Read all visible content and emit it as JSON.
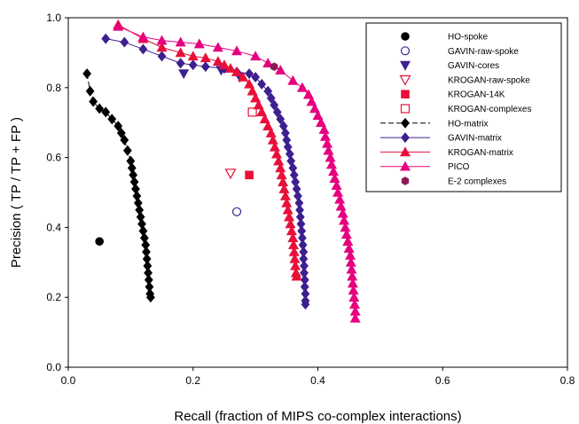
{
  "chart_data": {
    "type": "scatter",
    "title": "",
    "xlabel": "Recall (fraction of MIPS co-complex interactions)",
    "ylabel": "Precision ( TP / TP + FP )",
    "xlim": [
      0,
      0.8
    ],
    "ylim": [
      0,
      1.0
    ],
    "x_ticks": [
      "0.0",
      "0.2",
      "0.4",
      "0.6",
      "0.8"
    ],
    "y_ticks": [
      "0.0",
      "0.2",
      "0.4",
      "0.6",
      "0.8",
      "1.0"
    ],
    "grid": false,
    "legend_position": "top-right",
    "series": [
      {
        "name": "HO-spoke",
        "marker": "circle-filled",
        "color": "#000000",
        "line": false,
        "points": [
          [
            0.05,
            0.36
          ]
        ]
      },
      {
        "name": "GAVIN-raw-spoke",
        "marker": "circle-open",
        "color": "#3d1f8f",
        "line": false,
        "points": [
          [
            0.27,
            0.445
          ]
        ]
      },
      {
        "name": "GAVIN-cores",
        "marker": "triangle-down-filled",
        "color": "#3d1f8f",
        "line": false,
        "points": [
          [
            0.185,
            0.84
          ],
          [
            0.245,
            0.85
          ],
          [
            0.275,
            0.83
          ]
        ]
      },
      {
        "name": "KROGAN-raw-spoke",
        "marker": "triangle-down-open",
        "color": "#e8103a",
        "line": false,
        "points": [
          [
            0.26,
            0.555
          ]
        ]
      },
      {
        "name": "KROGAN-14K",
        "marker": "square-filled",
        "color": "#e8103a",
        "line": false,
        "points": [
          [
            0.29,
            0.55
          ]
        ]
      },
      {
        "name": "KROGAN-complexes",
        "marker": "square-open",
        "color": "#e8103a",
        "line": false,
        "points": [
          [
            0.295,
            0.73
          ]
        ]
      },
      {
        "name": "HO-matrix",
        "marker": "diamond-filled",
        "color": "#000000",
        "line": "dashed",
        "points": [
          [
            0.03,
            0.84
          ],
          [
            0.035,
            0.79
          ],
          [
            0.04,
            0.76
          ],
          [
            0.05,
            0.74
          ],
          [
            0.06,
            0.73
          ],
          [
            0.07,
            0.71
          ],
          [
            0.08,
            0.69
          ],
          [
            0.085,
            0.67
          ],
          [
            0.09,
            0.65
          ],
          [
            0.095,
            0.62
          ],
          [
            0.1,
            0.59
          ],
          [
            0.102,
            0.57
          ],
          [
            0.104,
            0.55
          ],
          [
            0.106,
            0.53
          ],
          [
            0.108,
            0.51
          ],
          [
            0.11,
            0.49
          ],
          [
            0.112,
            0.47
          ],
          [
            0.114,
            0.45
          ],
          [
            0.116,
            0.43
          ],
          [
            0.118,
            0.41
          ],
          [
            0.12,
            0.39
          ],
          [
            0.122,
            0.37
          ],
          [
            0.124,
            0.35
          ],
          [
            0.125,
            0.33
          ],
          [
            0.126,
            0.31
          ],
          [
            0.127,
            0.29
          ],
          [
            0.128,
            0.27
          ],
          [
            0.129,
            0.25
          ],
          [
            0.13,
            0.23
          ],
          [
            0.131,
            0.21
          ],
          [
            0.132,
            0.2
          ]
        ]
      },
      {
        "name": "GAVIN-matrix",
        "marker": "diamond-filled",
        "color": "#3d1f8f",
        "line": "solid",
        "points": [
          [
            0.06,
            0.94
          ],
          [
            0.09,
            0.93
          ],
          [
            0.12,
            0.91
          ],
          [
            0.15,
            0.89
          ],
          [
            0.18,
            0.87
          ],
          [
            0.2,
            0.865
          ],
          [
            0.22,
            0.86
          ],
          [
            0.25,
            0.855
          ],
          [
            0.27,
            0.845
          ],
          [
            0.29,
            0.84
          ],
          [
            0.3,
            0.83
          ],
          [
            0.31,
            0.81
          ],
          [
            0.32,
            0.79
          ],
          [
            0.325,
            0.77
          ],
          [
            0.33,
            0.75
          ],
          [
            0.335,
            0.73
          ],
          [
            0.34,
            0.71
          ],
          [
            0.345,
            0.69
          ],
          [
            0.348,
            0.67
          ],
          [
            0.35,
            0.65
          ],
          [
            0.352,
            0.63
          ],
          [
            0.355,
            0.61
          ],
          [
            0.357,
            0.59
          ],
          [
            0.36,
            0.57
          ],
          [
            0.362,
            0.55
          ],
          [
            0.364,
            0.53
          ],
          [
            0.366,
            0.51
          ],
          [
            0.368,
            0.49
          ],
          [
            0.37,
            0.47
          ],
          [
            0.371,
            0.45
          ],
          [
            0.372,
            0.43
          ],
          [
            0.373,
            0.41
          ],
          [
            0.374,
            0.39
          ],
          [
            0.375,
            0.37
          ],
          [
            0.376,
            0.35
          ],
          [
            0.377,
            0.33
          ],
          [
            0.377,
            0.31
          ],
          [
            0.378,
            0.29
          ],
          [
            0.378,
            0.27
          ],
          [
            0.379,
            0.25
          ],
          [
            0.379,
            0.23
          ],
          [
            0.38,
            0.21
          ],
          [
            0.38,
            0.19
          ],
          [
            0.38,
            0.18
          ]
        ]
      },
      {
        "name": "KROGAN-matrix",
        "marker": "triangle-up-filled",
        "color": "#e8103a",
        "line": "solid",
        "points": [
          [
            0.08,
            0.98
          ],
          [
            0.12,
            0.94
          ],
          [
            0.15,
            0.915
          ],
          [
            0.18,
            0.9
          ],
          [
            0.2,
            0.89
          ],
          [
            0.22,
            0.885
          ],
          [
            0.24,
            0.875
          ],
          [
            0.25,
            0.865
          ],
          [
            0.26,
            0.855
          ],
          [
            0.27,
            0.845
          ],
          [
            0.28,
            0.83
          ],
          [
            0.29,
            0.81
          ],
          [
            0.295,
            0.79
          ],
          [
            0.3,
            0.77
          ],
          [
            0.305,
            0.75
          ],
          [
            0.31,
            0.73
          ],
          [
            0.315,
            0.71
          ],
          [
            0.32,
            0.69
          ],
          [
            0.325,
            0.67
          ],
          [
            0.328,
            0.65
          ],
          [
            0.331,
            0.63
          ],
          [
            0.334,
            0.61
          ],
          [
            0.337,
            0.59
          ],
          [
            0.34,
            0.57
          ],
          [
            0.342,
            0.55
          ],
          [
            0.344,
            0.53
          ],
          [
            0.346,
            0.51
          ],
          [
            0.348,
            0.49
          ],
          [
            0.35,
            0.47
          ],
          [
            0.352,
            0.45
          ],
          [
            0.354,
            0.43
          ],
          [
            0.356,
            0.41
          ],
          [
            0.358,
            0.39
          ],
          [
            0.36,
            0.37
          ],
          [
            0.361,
            0.35
          ],
          [
            0.362,
            0.33
          ],
          [
            0.363,
            0.31
          ],
          [
            0.364,
            0.29
          ],
          [
            0.365,
            0.27
          ],
          [
            0.366,
            0.26
          ]
        ]
      },
      {
        "name": "PICO",
        "marker": "triangle-up-filled",
        "color": "#e6007e",
        "line": "solid",
        "points": [
          [
            0.08,
            0.975
          ],
          [
            0.12,
            0.945
          ],
          [
            0.15,
            0.935
          ],
          [
            0.18,
            0.93
          ],
          [
            0.21,
            0.925
          ],
          [
            0.24,
            0.915
          ],
          [
            0.27,
            0.905
          ],
          [
            0.3,
            0.89
          ],
          [
            0.32,
            0.87
          ],
          [
            0.34,
            0.85
          ],
          [
            0.36,
            0.82
          ],
          [
            0.375,
            0.8
          ],
          [
            0.385,
            0.78
          ],
          [
            0.39,
            0.76
          ],
          [
            0.395,
            0.74
          ],
          [
            0.4,
            0.72
          ],
          [
            0.405,
            0.7
          ],
          [
            0.41,
            0.68
          ],
          [
            0.412,
            0.66
          ],
          [
            0.415,
            0.64
          ],
          [
            0.417,
            0.62
          ],
          [
            0.42,
            0.6
          ],
          [
            0.422,
            0.58
          ],
          [
            0.425,
            0.56
          ],
          [
            0.427,
            0.54
          ],
          [
            0.43,
            0.52
          ],
          [
            0.432,
            0.5
          ],
          [
            0.435,
            0.48
          ],
          [
            0.437,
            0.46
          ],
          [
            0.44,
            0.44
          ],
          [
            0.442,
            0.42
          ],
          [
            0.444,
            0.4
          ],
          [
            0.446,
            0.38
          ],
          [
            0.448,
            0.36
          ],
          [
            0.45,
            0.34
          ],
          [
            0.452,
            0.32
          ],
          [
            0.453,
            0.3
          ],
          [
            0.454,
            0.28
          ],
          [
            0.455,
            0.26
          ],
          [
            0.456,
            0.24
          ],
          [
            0.457,
            0.22
          ],
          [
            0.458,
            0.2
          ],
          [
            0.459,
            0.18
          ],
          [
            0.46,
            0.16
          ],
          [
            0.46,
            0.14
          ]
        ]
      },
      {
        "name": "E-2 complexes",
        "marker": "hexagon-filled",
        "color": "#8b1a5a",
        "line": false,
        "points": [
          [
            0.33,
            0.86
          ]
        ]
      }
    ]
  }
}
